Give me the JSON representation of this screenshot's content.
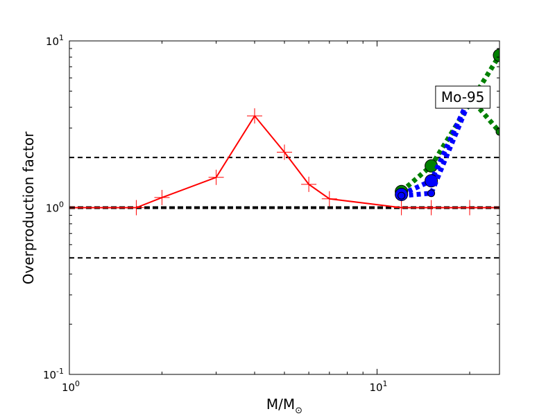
{
  "chart_data": {
    "type": "line",
    "title": "",
    "xlabel": "M/M☉",
    "xlabel_main": "M/M",
    "xlabel_sub": "⊙",
    "ylabel": "Overproduction factor",
    "xscale": "log",
    "yscale": "log",
    "xlim": [
      1,
      25
    ],
    "ylim": [
      0.1,
      10
    ],
    "grid": false,
    "xticks": [
      {
        "value": 1,
        "base": "10",
        "exp": "0"
      },
      {
        "value": 10,
        "base": "10",
        "exp": "1"
      }
    ],
    "yticks": [
      {
        "value": 0.1,
        "base": "10",
        "exp": "-1"
      },
      {
        "value": 1,
        "base": "10",
        "exp": "0"
      },
      {
        "value": 10,
        "base": "10",
        "exp": "1"
      }
    ],
    "hlines": [
      {
        "y": 2,
        "style": "dashed",
        "color": "#000000",
        "width": 2
      },
      {
        "y": 1,
        "style": "dashed",
        "color": "#000000",
        "width": 4
      },
      {
        "y": 0.5,
        "style": "dashed",
        "color": "#000000",
        "width": 2
      }
    ],
    "series": [
      {
        "color": "#ff0000",
        "line": "solid",
        "marker": "plus",
        "x": [
          1.0,
          1.65,
          2.0,
          3.0,
          4.0,
          5.0,
          6.0,
          7.0,
          12.0,
          15.0,
          20.0,
          25.0
        ],
        "y": [
          1.0,
          1.0,
          1.15,
          1.52,
          3.55,
          2.15,
          1.38,
          1.13,
          1.0,
          1.0,
          1.0,
          1.0
        ]
      },
      {
        "color": "#008000",
        "line": "dotted-thick",
        "marker": "circle",
        "x": [
          12.0,
          15.0,
          25.0
        ],
        "y": [
          1.25,
          1.78,
          8.2
        ]
      },
      {
        "color": "#008000",
        "line": "dotted-thick",
        "marker": "circle-small",
        "x": [
          20.0,
          25.0
        ],
        "y": [
          4.6,
          2.85
        ]
      },
      {
        "color": "#0000ff",
        "line": "dotted-thick",
        "marker": "circle",
        "x": [
          12.0,
          15.0,
          20.0
        ],
        "y": [
          1.2,
          1.45,
          4.6
        ]
      },
      {
        "color": "#0000ff",
        "line": "dotted-thick",
        "marker": "circle-small",
        "x": [
          12.0,
          15.0,
          20.0
        ],
        "y": [
          1.18,
          1.22,
          4.4
        ]
      }
    ],
    "annotations": [
      {
        "text": "Mo-95",
        "x": 19.0,
        "y": 4.6,
        "boxed": true
      }
    ]
  }
}
